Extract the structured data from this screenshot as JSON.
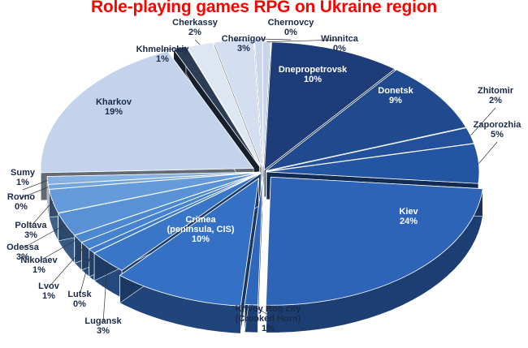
{
  "chart_data": {
    "type": "pie",
    "title": "Role-playing games RPG on Ukraine region",
    "categories": [
      "Dnepropetrovsk",
      "Donetsk",
      "Zhitomir",
      "Zaporozhia",
      "Kiev",
      "Krivoy Rog city (Crooked Horn)",
      "Crimea (peninsula, CIS)",
      "Lugansk",
      "Lutsk",
      "Lvov",
      "Nikolaev",
      "Odessa",
      "Poltava",
      "Rovno",
      "Sumy",
      "Kharkov",
      "Khmelnickiy",
      "Cherkassy",
      "Chernigov",
      "Chernovcy",
      "Winnitca"
    ],
    "values": [
      10,
      9,
      2,
      5,
      24,
      1,
      10,
      3,
      0,
      1,
      1,
      3,
      3,
      0,
      1,
      19,
      1,
      2,
      3,
      0,
      0
    ],
    "value_labels": [
      "10%",
      "9%",
      "2%",
      "5%",
      "24%",
      "1%",
      "10%",
      "3%",
      "0%",
      "1%",
      "1%",
      "3%",
      "3%",
      "0%",
      "1%",
      "19%",
      "1%",
      "2%",
      "3%",
      "0%",
      "0%"
    ],
    "label_names": [
      "Dnepropetrovsk",
      "Donetsk",
      "Zhitomir",
      "Zaporozhia",
      "Kiev",
      "Krivoy Rog city\n(Crooked Horn)",
      "Crimea\n(peninsula, CIS)",
      "Lugansk",
      "Lutsk",
      "Lvov",
      "Nikolaev",
      "Odessa",
      "Poltava",
      "Rovno",
      "Sumy",
      "Kharkov",
      "Khmelnickiy",
      "Cherkassy",
      "Chernigov",
      "Chernovcy",
      "Winnitca"
    ],
    "colors": [
      "#1e3d78",
      "#1f4a8e",
      "#22509a",
      "#2455a3",
      "#2e64b8",
      "#2f67bc",
      "#3470c4",
      "#3a76c8",
      "#3f7bcc",
      "#4582cf",
      "#4c88d2",
      "#5891d6",
      "#659bda",
      "#72a4de",
      "#84b0e2",
      "#c3d3ec",
      "#2b3d55",
      "#dde6f1",
      "#d3def0",
      "#cbd7ec",
      "#c8d4ea"
    ]
  }
}
